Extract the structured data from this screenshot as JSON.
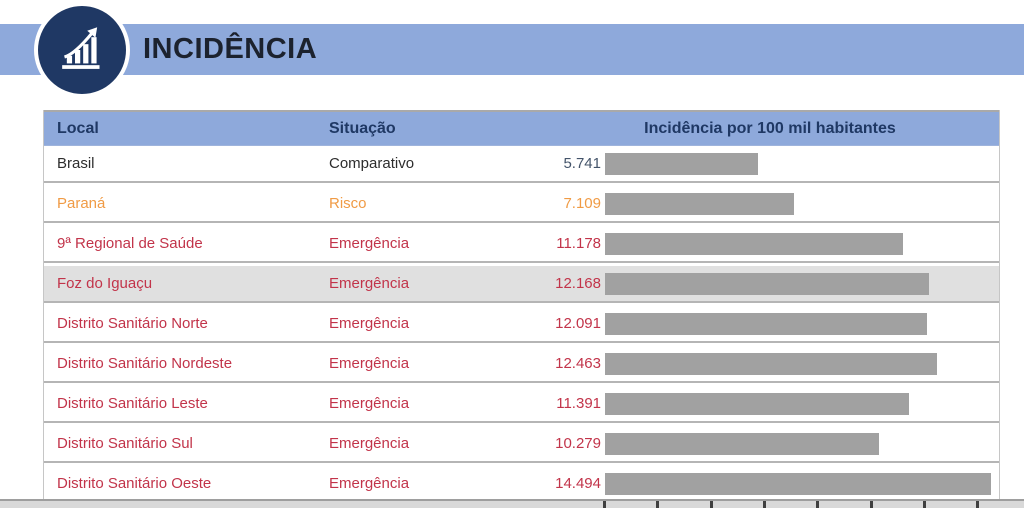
{
  "header": {
    "title": "INCIDÊNCIA",
    "icon": "bar-chart-rising-arrow-icon"
  },
  "table": {
    "columns": [
      "Local",
      "Situação",
      "Incidência por 100 mil habitantes"
    ],
    "rows": [
      {
        "local": "Brasil",
        "situacao": "Comparativo",
        "value": "5.741",
        "value_num": 5741,
        "tone": "neutral",
        "highlight": false
      },
      {
        "local": "Paraná",
        "situacao": "Risco",
        "value": "7.109",
        "value_num": 7109,
        "tone": "warning",
        "highlight": false
      },
      {
        "local": "9ª Regional de Saúde",
        "situacao": "Emergência",
        "value": "11.178",
        "value_num": 11178,
        "tone": "danger",
        "highlight": false
      },
      {
        "local": "Foz do Iguaçu",
        "situacao": "Emergência",
        "value": "12.168",
        "value_num": 12168,
        "tone": "danger",
        "highlight": true
      },
      {
        "local": "Distrito Sanitário Norte",
        "situacao": "Emergência",
        "value": "12.091",
        "value_num": 12091,
        "tone": "danger",
        "highlight": false
      },
      {
        "local": "Distrito Sanitário Nordeste",
        "situacao": "Emergência",
        "value": "12.463",
        "value_num": 12463,
        "tone": "danger",
        "highlight": false
      },
      {
        "local": "Distrito Sanitário Leste",
        "situacao": "Emergência",
        "value": "11.391",
        "value_num": 11391,
        "tone": "danger",
        "highlight": false
      },
      {
        "local": "Distrito Sanitário Sul",
        "situacao": "Emergência",
        "value": "10.279",
        "value_num": 10279,
        "tone": "danger",
        "highlight": false
      },
      {
        "local": "Distrito Sanitário Oeste",
        "situacao": "Emergência",
        "value": "14.494",
        "value_num": 14494,
        "tone": "danger",
        "highlight": false
      }
    ]
  },
  "colors": {
    "banner_blue": "#8EA9DB",
    "navy": "#1F3864",
    "title_text": "#1C222E",
    "neutral_text": "#2D2D2D",
    "neutral_value": "#44546A",
    "warning": "#F09B45",
    "danger": "#C2344A",
    "bar_gray": "#A1A1A1",
    "row_highlight": "#E0E0E0"
  },
  "chart_data": {
    "type": "bar",
    "title": "Incidência por 100 mil habitantes",
    "categories": [
      "Brasil",
      "Paraná",
      "9ª Regional de Saúde",
      "Foz do Iguaçu",
      "Distrito Sanitário Norte",
      "Distrito Sanitário Nordeste",
      "Distrito Sanitário Leste",
      "Distrito Sanitário Sul",
      "Distrito Sanitário Oeste"
    ],
    "values": [
      5741,
      7109,
      11178,
      12168,
      12091,
      12463,
      11391,
      10279,
      14494
    ],
    "xlabel": "",
    "ylabel": "",
    "xlim": [
      0,
      14860
    ],
    "axis_ticks": [
      0,
      2000,
      4000,
      6000,
      8000,
      10000,
      12000,
      14000
    ],
    "legend": "none",
    "grid": "off",
    "orientation": "horizontal",
    "bar_color": "#A1A1A1"
  }
}
